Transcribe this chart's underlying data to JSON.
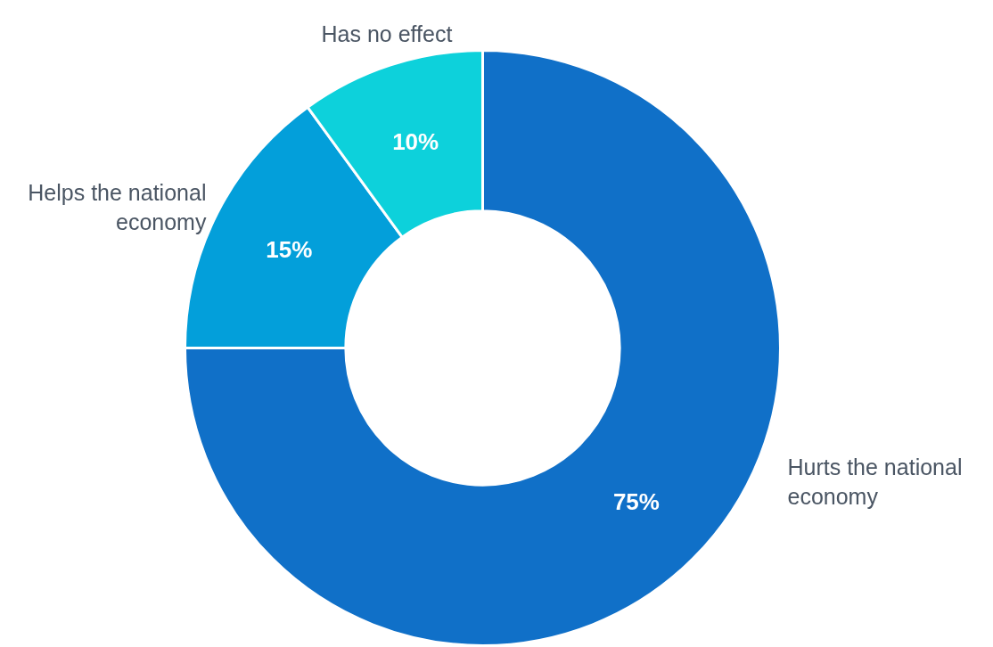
{
  "chart_data": {
    "type": "donut",
    "categories": [
      "Hurts the national economy",
      "Helps the national economy",
      "Has no effect"
    ],
    "values": [
      75,
      15,
      10
    ],
    "colors": [
      "#1070c8",
      "#039fda",
      "#0dd1db"
    ],
    "value_labels": [
      "75%",
      "15%",
      "10%"
    ]
  }
}
